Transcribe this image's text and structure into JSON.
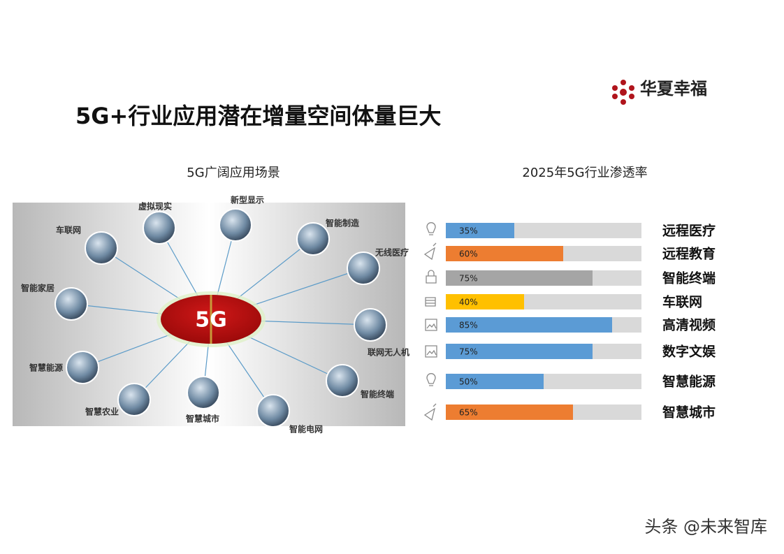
{
  "header": {
    "title": "5G+行业应用潜在增量空间体量巨大",
    "logo": "华夏幸福",
    "watermark": "头条 @未来智库"
  },
  "diagram": {
    "title": "5G广阔应用场景",
    "center": "5G",
    "nodes": [
      {
        "label": "车联网"
      },
      {
        "label": "虚拟现实"
      },
      {
        "label": "新型显示"
      },
      {
        "label": "智能制造"
      },
      {
        "label": "无线医疗"
      },
      {
        "label": "智能家居"
      },
      {
        "label": "联网无人机"
      },
      {
        "label": "智慧能源"
      },
      {
        "label": "智能终端"
      },
      {
        "label": "智慧农业"
      },
      {
        "label": "智慧城市"
      },
      {
        "label": "智能电网"
      }
    ]
  },
  "chart_data": {
    "type": "hbar",
    "title": "2025年5G行业渗透率",
    "categories": [
      "远程医疗",
      "远程教育",
      "智能终端",
      "车联网",
      "高清视频",
      "数字文娱",
      "智慧能源",
      "智慧城市"
    ],
    "values": [
      35,
      60,
      75,
      40,
      85,
      75,
      50,
      65
    ],
    "value_labels": [
      "35%",
      "60%",
      "75%",
      "40%",
      "85%",
      "75%",
      "50%",
      "65%"
    ],
    "colors": [
      "#5b9bd5",
      "#ed7d31",
      "#a5a5a5",
      "#ffc000",
      "#5b9bd5",
      "#5b9bd5",
      "#5b9bd5",
      "#ed7d31"
    ],
    "track_color": "#d9d9d9",
    "xlim": [
      0,
      100
    ]
  }
}
